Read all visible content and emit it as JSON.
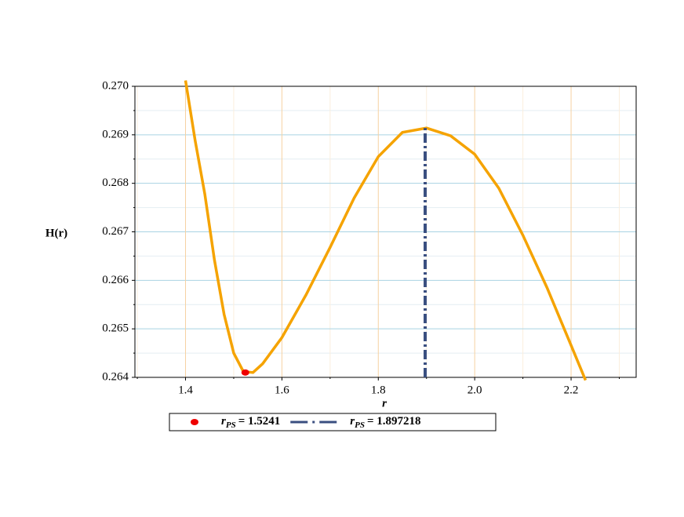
{
  "chart_data": {
    "type": "line",
    "ylabel": "H(r)",
    "xlabel": "r",
    "xlim": [
      1.295,
      2.335
    ],
    "ylim": [
      0.264,
      0.27
    ],
    "xticks": [
      1.4,
      1.6,
      1.8,
      {
        "value": 2,
        "label": "2.0"
      },
      2.2
    ],
    "xminorticks": [
      1.3,
      1.5,
      1.7,
      1.9,
      2.1,
      2.3
    ],
    "yticks": [
      0.264,
      0.265,
      0.266,
      0.267,
      0.268,
      0.269,
      {
        "value": 0.27,
        "label": "0.270"
      }
    ],
    "yminorticks": [
      0.2645,
      0.2655,
      0.2665,
      0.2675,
      0.2685,
      0.2695
    ],
    "grid": true,
    "series": [
      {
        "color": "#f5a300",
        "x": [
          1.4,
          1.42,
          1.44,
          1.46,
          1.48,
          1.5,
          1.52,
          1.54,
          1.56,
          1.6,
          1.65,
          1.7,
          1.75,
          1.8,
          1.85,
          1.9,
          1.95,
          2.0,
          2.05,
          2.1,
          2.15,
          2.2,
          2.23
        ],
        "values": [
          0.27012,
          0.26888,
          0.26778,
          0.26642,
          0.2653,
          0.2645,
          0.26412,
          0.2641,
          0.26428,
          0.26482,
          0.2657,
          0.26668,
          0.2677,
          0.26855,
          0.26905,
          0.26914,
          0.26898,
          0.2686,
          0.2679,
          0.26693,
          0.26585,
          0.26466,
          0.26394
        ]
      },
      {
        "kind": "point",
        "color": "#ee0000",
        "symbol": "r",
        "subscript": "PS",
        "name": "= 1.5241",
        "x": [
          1.5241
        ],
        "values": [
          0.2641
        ]
      },
      {
        "kind": "vline",
        "color": "#3a4f80",
        "symbol": "r",
        "subscript": "PS",
        "name": "= 1.897218",
        "x": [
          1.897218,
          1.897218
        ],
        "values": [
          0.264,
          0.26914
        ]
      }
    ]
  }
}
